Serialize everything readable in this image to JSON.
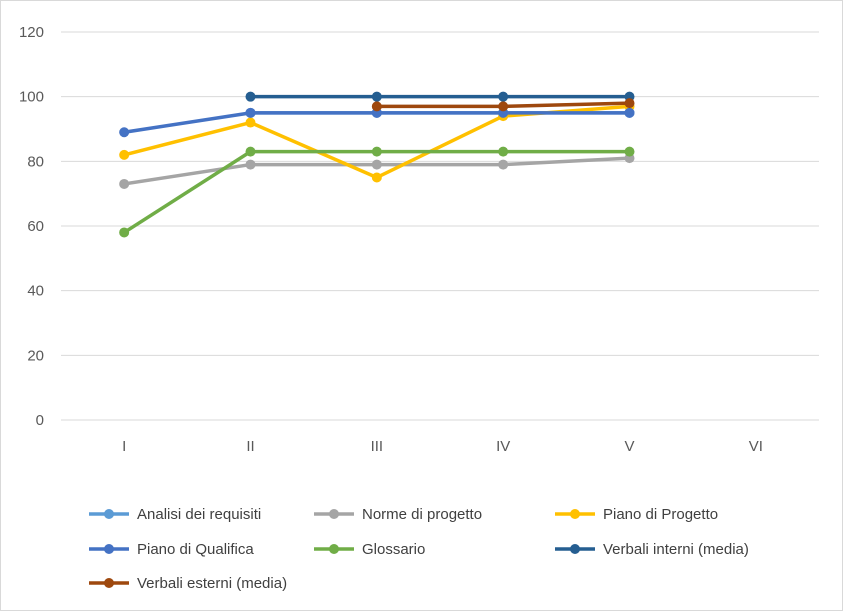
{
  "chart_data": {
    "type": "line",
    "title": "",
    "xlabel": "",
    "ylabel": "",
    "categories": [
      "I",
      "II",
      "III",
      "IV",
      "V",
      "VI"
    ],
    "ylim": [
      0,
      120
    ],
    "yticks": [
      "0",
      "20",
      "40",
      "60",
      "80",
      "100",
      "120"
    ],
    "grid": true,
    "legend_position": "bottom",
    "series": [
      {
        "name": "Analisi dei requisiti",
        "color": "#5b9bd5",
        "values": [
          null,
          95,
          95,
          95,
          95,
          null
        ]
      },
      {
        "name": "Norme di progetto",
        "color": "#a5a5a5",
        "values": [
          73,
          79,
          79,
          79,
          81,
          null
        ]
      },
      {
        "name": "Piano di Progetto",
        "color": "#ffc000",
        "values": [
          82,
          92,
          75,
          94,
          97,
          null
        ]
      },
      {
        "name": "Piano di Qualifica",
        "color": "#4472c4",
        "values": [
          89,
          95,
          95,
          95,
          95,
          null
        ]
      },
      {
        "name": "Glossario",
        "color": "#70ad47",
        "values": [
          58,
          83,
          83,
          83,
          83,
          null
        ]
      },
      {
        "name": "Verbali interni (media)",
        "color": "#255e91",
        "values": [
          null,
          100,
          100,
          100,
          100,
          null
        ]
      },
      {
        "name": "Verbali esterni (media)",
        "color": "#9e480e",
        "values": [
          null,
          null,
          97,
          97,
          98,
          null
        ]
      }
    ]
  }
}
